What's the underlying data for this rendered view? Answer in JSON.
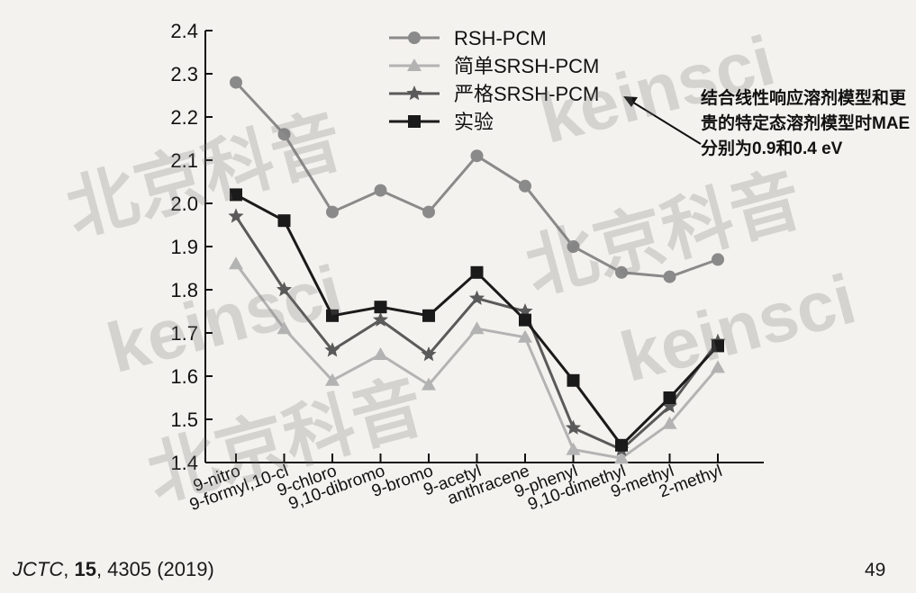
{
  "chart_data": {
    "type": "line",
    "categories": [
      "9-nitro",
      "9-formyl,10-cl",
      "9-chloro",
      "9,10-dibromo",
      "9-bromo",
      "9-acetyl",
      "anthracene",
      "9-phenyl",
      "9,10-dimethyl",
      "9-methyl",
      "2-methyl"
    ],
    "series": [
      {
        "name": "RSH-PCM",
        "color": "#8a8a8a",
        "marker": "circle",
        "values": [
          2.28,
          2.16,
          1.98,
          2.03,
          1.98,
          2.11,
          2.04,
          1.9,
          1.84,
          1.83,
          1.87
        ]
      },
      {
        "name": "简单SRSH-PCM",
        "color": "#b3b3b3",
        "marker": "triangle",
        "values": [
          1.86,
          1.71,
          1.59,
          1.65,
          1.58,
          1.71,
          1.69,
          1.43,
          1.41,
          1.49,
          1.62
        ]
      },
      {
        "name": "严格SRSH-PCM",
        "color": "#5a5a5a",
        "marker": "star",
        "values": [
          1.97,
          1.8,
          1.66,
          1.73,
          1.65,
          1.78,
          1.75,
          1.48,
          1.43,
          1.53,
          1.68
        ]
      },
      {
        "name": "实验",
        "color": "#1a1a1a",
        "marker": "square",
        "values": [
          2.02,
          1.96,
          1.74,
          1.76,
          1.74,
          1.84,
          1.73,
          1.59,
          1.44,
          1.55,
          1.67
        ]
      }
    ],
    "ylim": [
      1.4,
      2.4
    ],
    "yticks": [
      "1.4",
      "1.5",
      "1.6",
      "1.7",
      "1.8",
      "1.9",
      "2.0",
      "2.1",
      "2.2",
      "2.3",
      "2.4"
    ],
    "legend_position": "top-center",
    "grid": false
  },
  "annotation": "结合线性响应溶剂模型和更贵的特定态溶剂模型时MAE分别为0.9和0.4 eV",
  "citation": {
    "journal": "JCTC",
    "volume": "15",
    "rest": ", 4305 (2019)"
  },
  "page_number": "49",
  "watermarks": [
    "北京科音",
    "keinsci"
  ]
}
